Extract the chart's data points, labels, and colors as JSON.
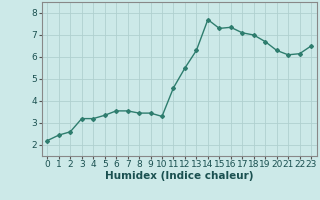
{
  "x": [
    0,
    1,
    2,
    3,
    4,
    5,
    6,
    7,
    8,
    9,
    10,
    11,
    12,
    13,
    14,
    15,
    16,
    17,
    18,
    19,
    20,
    21,
    22,
    23
  ],
  "y": [
    2.2,
    2.45,
    2.6,
    3.2,
    3.2,
    3.35,
    3.55,
    3.55,
    3.45,
    3.45,
    3.3,
    4.6,
    5.5,
    6.3,
    7.7,
    7.3,
    7.35,
    7.1,
    7.0,
    6.7,
    6.3,
    6.1,
    6.15,
    6.5
  ],
  "line_color": "#2e7d6e",
  "marker": "D",
  "marker_size": 2.0,
  "xlabel": "Humidex (Indice chaleur)",
  "xlim": [
    -0.5,
    23.5
  ],
  "ylim": [
    1.5,
    8.5
  ],
  "yticks": [
    2,
    3,
    4,
    5,
    6,
    7,
    8
  ],
  "xticks": [
    0,
    1,
    2,
    3,
    4,
    5,
    6,
    7,
    8,
    9,
    10,
    11,
    12,
    13,
    14,
    15,
    16,
    17,
    18,
    19,
    20,
    21,
    22,
    23
  ],
  "bg_color": "#cce9e8",
  "grid_color": "#b0d0cf",
  "tick_label_fontsize": 6.5,
  "xlabel_fontsize": 7.5,
  "line_width": 1.0
}
